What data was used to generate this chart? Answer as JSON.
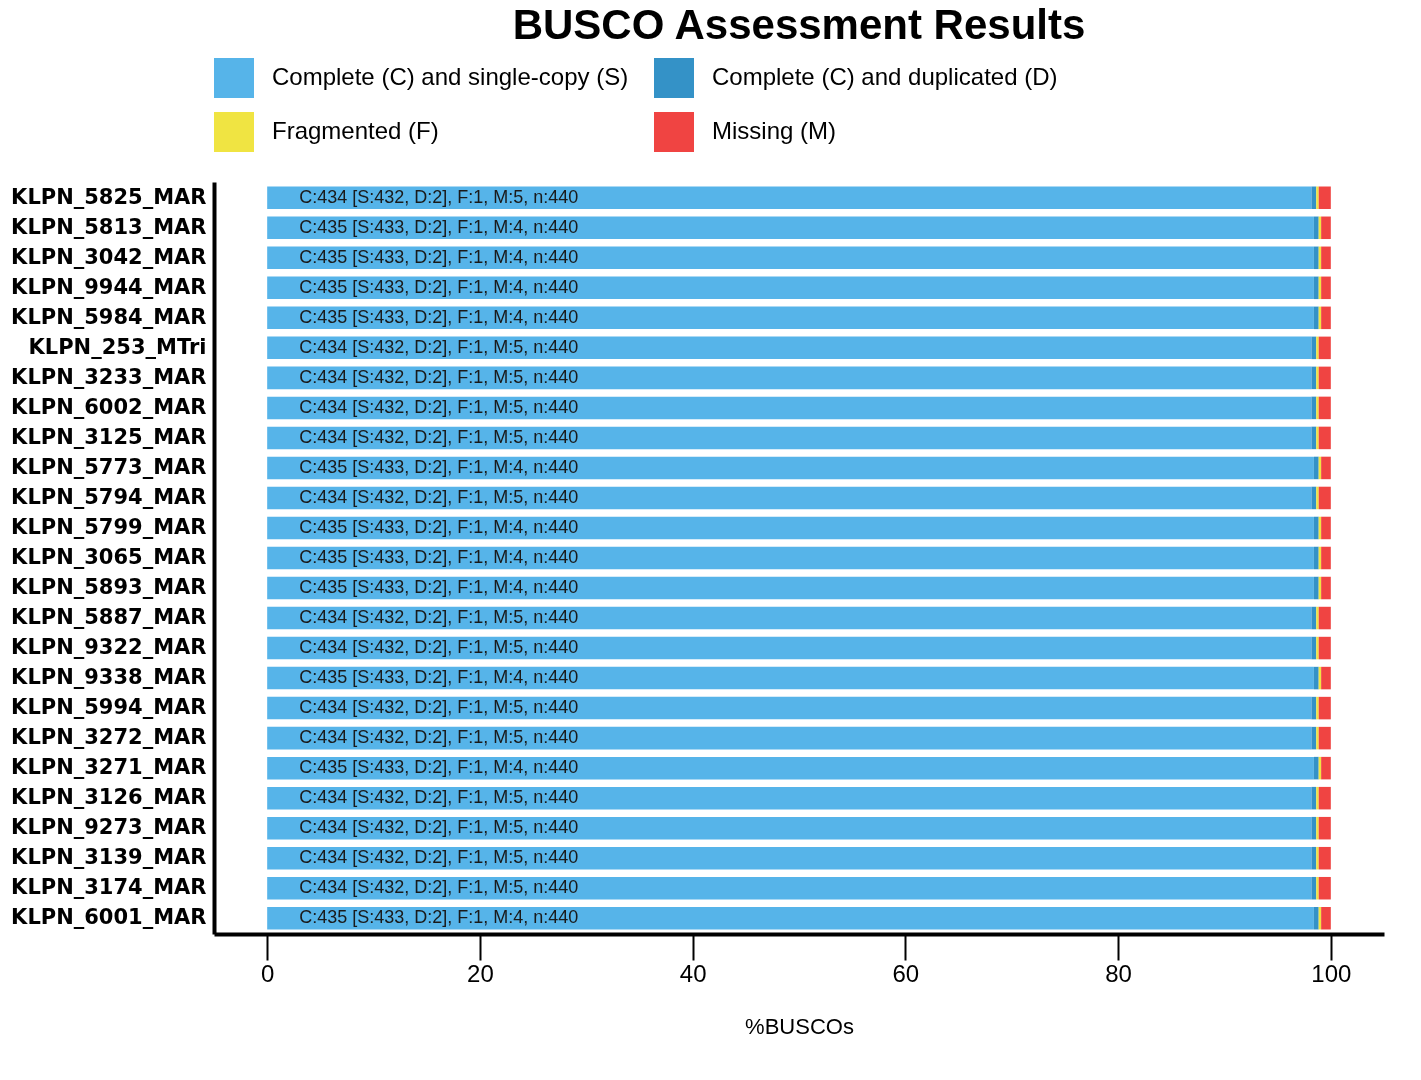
{
  "chart_data": {
    "type": "bar",
    "title": "BUSCO Assessment Results",
    "xlabel": "%BUSCOs",
    "orientation": "horizontal",
    "stacked": true,
    "legend": "top",
    "grid": false,
    "categories": [
      "KLPN_5825_MAR",
      "KLPN_5813_MAR",
      "KLPN_3042_MAR",
      "KLPN_9944_MAR",
      "KLPN_5984_MAR",
      "KLPN_253_MTri",
      "KLPN_3233_MAR",
      "KLPN_6002_MAR",
      "KLPN_3125_MAR",
      "KLPN_5773_MAR",
      "KLPN_5794_MAR",
      "KLPN_5799_MAR",
      "KLPN_3065_MAR",
      "KLPN_5893_MAR",
      "KLPN_5887_MAR",
      "KLPN_9322_MAR",
      "KLPN_9338_MAR",
      "KLPN_5994_MAR",
      "KLPN_3272_MAR",
      "KLPN_3271_MAR",
      "KLPN_3126_MAR",
      "KLPN_9273_MAR",
      "KLPN_3139_MAR",
      "KLPN_3174_MAR",
      "KLPN_6001_MAR"
    ],
    "xlim": [
      -5,
      105
    ],
    "xticks": [
      0,
      20,
      40,
      60,
      80,
      100
    ],
    "series": [
      {
        "name": "Complete (C) and single-copy (S)",
        "color": "#56b4e9",
        "values": [
          98.18,
          98.41,
          98.41,
          98.41,
          98.41,
          98.18,
          98.18,
          98.18,
          98.18,
          98.41,
          98.18,
          98.41,
          98.41,
          98.41,
          98.18,
          98.18,
          98.41,
          98.18,
          98.18,
          98.41,
          98.18,
          98.18,
          98.18,
          98.18,
          98.41
        ],
        "value_labels": [
          "C:434 [S:432, D:2], F:1, M:5, n:440",
          "C:435 [S:433, D:2], F:1, M:4, n:440",
          "C:435 [S:433, D:2], F:1, M:4, n:440",
          "C:435 [S:433, D:2], F:1, M:4, n:440",
          "C:435 [S:433, D:2], F:1, M:4, n:440",
          "C:434 [S:432, D:2], F:1, M:5, n:440",
          "C:434 [S:432, D:2], F:1, M:5, n:440",
          "C:434 [S:432, D:2], F:1, M:5, n:440",
          "C:434 [S:432, D:2], F:1, M:5, n:440",
          "C:435 [S:433, D:2], F:1, M:4, n:440",
          "C:434 [S:432, D:2], F:1, M:5, n:440",
          "C:435 [S:433, D:2], F:1, M:4, n:440",
          "C:435 [S:433, D:2], F:1, M:4, n:440",
          "C:435 [S:433, D:2], F:1, M:4, n:440",
          "C:434 [S:432, D:2], F:1, M:5, n:440",
          "C:434 [S:432, D:2], F:1, M:5, n:440",
          "C:435 [S:433, D:2], F:1, M:4, n:440",
          "C:434 [S:432, D:2], F:1, M:5, n:440",
          "C:434 [S:432, D:2], F:1, M:5, n:440",
          "C:435 [S:433, D:2], F:1, M:4, n:440",
          "C:434 [S:432, D:2], F:1, M:5, n:440",
          "C:434 [S:432, D:2], F:1, M:5, n:440",
          "C:434 [S:432, D:2], F:1, M:5, n:440",
          "C:434 [S:432, D:2], F:1, M:5, n:440",
          "C:435 [S:433, D:2], F:1, M:4, n:440"
        ]
      },
      {
        "name": "Complete (C) and duplicated (D)",
        "color": "#3492c7",
        "values": [
          0.45,
          0.45,
          0.45,
          0.45,
          0.45,
          0.45,
          0.45,
          0.45,
          0.45,
          0.45,
          0.45,
          0.45,
          0.45,
          0.45,
          0.45,
          0.45,
          0.45,
          0.45,
          0.45,
          0.45,
          0.45,
          0.45,
          0.45,
          0.45,
          0.45
        ]
      },
      {
        "name": "Fragmented (F)",
        "color": "#f0e442",
        "values": [
          0.23,
          0.23,
          0.23,
          0.23,
          0.23,
          0.23,
          0.23,
          0.23,
          0.23,
          0.23,
          0.23,
          0.23,
          0.23,
          0.23,
          0.23,
          0.23,
          0.23,
          0.23,
          0.23,
          0.23,
          0.23,
          0.23,
          0.23,
          0.23,
          0.23
        ]
      },
      {
        "name": "Missing (M)",
        "color": "#f04442",
        "values": [
          1.14,
          0.91,
          0.91,
          0.91,
          0.91,
          1.14,
          1.14,
          1.14,
          1.14,
          0.91,
          1.14,
          0.91,
          0.91,
          0.91,
          1.14,
          1.14,
          0.91,
          1.14,
          1.14,
          0.91,
          1.14,
          1.14,
          1.14,
          1.14,
          0.91
        ]
      }
    ]
  }
}
